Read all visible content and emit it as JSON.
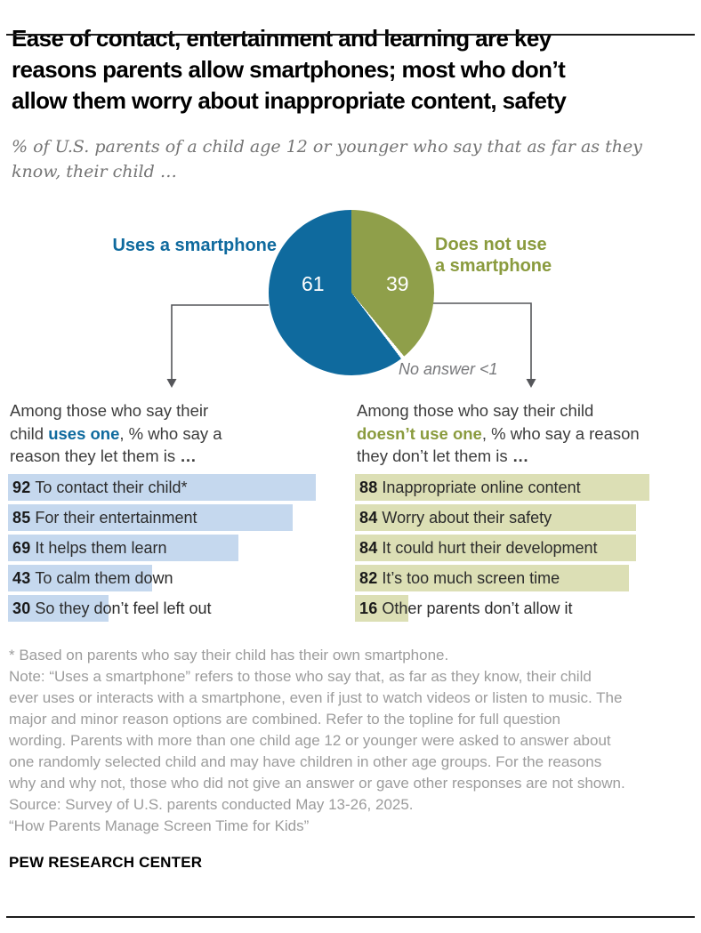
{
  "header": {
    "title": "Ease of contact, entertainment and learning are key\nreasons parents allow smartphones; most who don’t\nallow them worry about inappropriate content, safety",
    "subtitle": "% of U.S. parents of a child age 12 or younger who say that as far as they\nknow, their child …"
  },
  "colors": {
    "pie_blue": "#0F6A9E",
    "pie_olive": "#8F9F4A",
    "bar_light_blue": "#C5D8EE",
    "bar_light_olive": "#DCDFB5",
    "connector_gray": "#55565A",
    "note_gray": "#9C9C9C",
    "no_answer_gray": "#77787B"
  },
  "chart_data": {
    "pie": {
      "type": "pie",
      "units": "% of U.S. parents",
      "slices": [
        {
          "label": "Uses a smartphone",
          "value": 61,
          "color": "#0F6A9E"
        },
        {
          "label": "Does not use a smartphone",
          "value": 39,
          "color": "#8F9F4A"
        },
        {
          "label": "No answer",
          "value": "<1",
          "color": "#FFFFFF"
        }
      ],
      "callout_left": "Uses a smartphone",
      "callout_right": "Does not use\na smartphone",
      "no_answer_label": "No answer <1"
    },
    "left_bars": {
      "type": "bar",
      "xlim": [
        0,
        100
      ],
      "bar_color": "bar_light_blue",
      "header": {
        "prefix": "Among those who say their\nchild ",
        "highlight": "uses one",
        "suffix": ", % who say a\nreason they let them is ",
        "ellipsis": "…"
      },
      "items": [
        {
          "value": 92,
          "label": "To contact their child*"
        },
        {
          "value": 85,
          "label": "For their entertainment"
        },
        {
          "value": 69,
          "label": "It helps them learn"
        },
        {
          "value": 43,
          "label": "To calm them down"
        },
        {
          "value": 30,
          "label": "So they don’t feel left out"
        }
      ]
    },
    "right_bars": {
      "type": "bar",
      "xlim": [
        0,
        100
      ],
      "bar_color": "bar_light_olive",
      "header": {
        "prefix": "Among those who say their child\n",
        "highlight": "doesn’t use one",
        "suffix": ", % who say a reason\nthey don’t let them is ",
        "ellipsis": "…"
      },
      "items": [
        {
          "value": 88,
          "label": "Inappropriate online content"
        },
        {
          "value": 84,
          "label": "Worry about their safety"
        },
        {
          "value": 84,
          "label": "It could hurt their development"
        },
        {
          "value": 82,
          "label": "It’s too much screen time"
        },
        {
          "value": 16,
          "label": "Other parents don’t allow it"
        }
      ]
    }
  },
  "footnotes": {
    "text": "* Based on parents who say their child has their own smartphone.\nNote: “Uses a smartphone” refers to those who say that, as far as they know, their child\never uses or interacts with a smartphone, even if just to watch videos or listen to music. The\nmajor and minor reason options are combined. Refer to the topline for full question\nwording. Parents with more than one child age 12 or younger were asked to answer about\none randomly selected child and may have children in other age groups. For the reasons\nwhy and why not, those who did not give an answer or gave other responses are not shown.\nSource: Survey of U.S. parents conducted May 13-26, 2025.\n“How Parents Manage Screen Time for Kids”"
  },
  "footer": {
    "label": "PEW RESEARCH CENTER"
  }
}
